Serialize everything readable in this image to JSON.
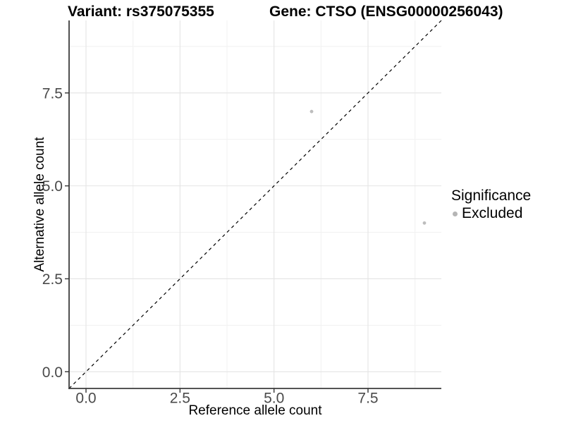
{
  "titles": {
    "variant": "Variant: rs375075355",
    "gene": "Gene: CTSO (ENSG00000256043)"
  },
  "x_axis": {
    "label": "Reference allele count",
    "tick_labels": [
      "0.0",
      "2.5",
      "5.0",
      "7.5"
    ]
  },
  "y_axis": {
    "label": "Alternative allele count",
    "tick_labels": [
      "0.0",
      "2.5",
      "5.0",
      "7.5"
    ]
  },
  "legend": {
    "title": "Significance",
    "items": [
      {
        "label": "Excluded",
        "color": "#b5b5b5"
      }
    ]
  },
  "chart_data": {
    "type": "scatter",
    "title": "Variant: rs375075355 — Gene: CTSO (ENSG00000256043)",
    "xlabel": "Reference allele count",
    "ylabel": "Alternative allele count",
    "xlim": [
      -0.45,
      9.45
    ],
    "ylim": [
      -0.45,
      9.45
    ],
    "x_major_ticks": [
      0,
      2.5,
      5,
      7.5
    ],
    "y_major_ticks": [
      0,
      2.5,
      5,
      7.5
    ],
    "x_minor_ticks": [
      1.25,
      3.75,
      6.25,
      8.75
    ],
    "y_minor_ticks": [
      1.25,
      3.75,
      6.25,
      8.75
    ],
    "grid": true,
    "legend_position": "right",
    "reference_line": {
      "slope": 1,
      "intercept": 0,
      "style": "dashed",
      "color": "#000000"
    },
    "series": [
      {
        "name": "Excluded",
        "color": "#bdbdbd",
        "point_radius": 2.4,
        "points": [
          {
            "x": 6,
            "y": 7
          },
          {
            "x": 9,
            "y": 4
          }
        ]
      }
    ]
  },
  "colors": {
    "background": "#ffffff",
    "grid_major": "#e4e4e4",
    "grid_minor": "#f1f1f1",
    "axis_line": "#3c3c3c",
    "tick_mark": "#333333",
    "tick_text": "#4a4a4a"
  }
}
